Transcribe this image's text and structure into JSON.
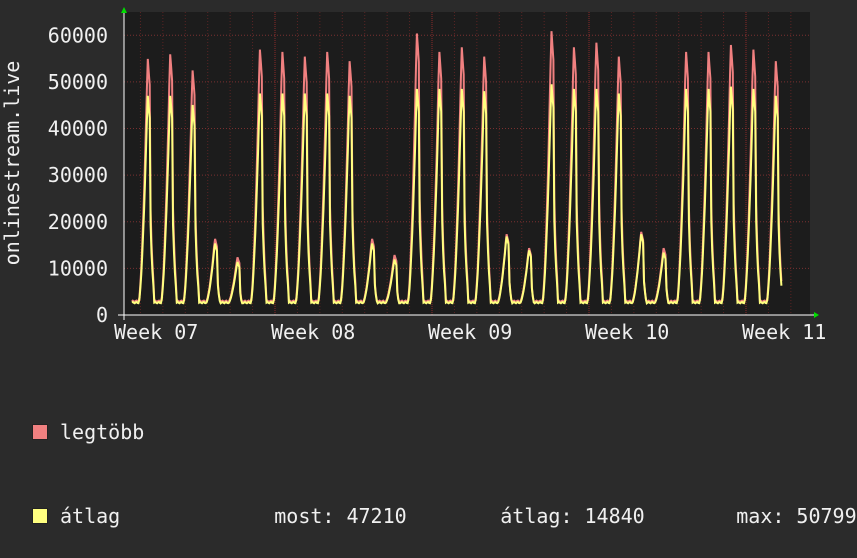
{
  "chart_data": {
    "type": "area",
    "ylabel": "onlinestream.live",
    "ylim": [
      0,
      65000
    ],
    "yticks": [
      0,
      10000,
      20000,
      30000,
      40000,
      50000,
      60000
    ],
    "grid": true,
    "x_tick_labels": [
      "Week 07",
      "Week 08",
      "Week 09",
      "Week 10",
      "Week 11"
    ],
    "series": [
      {
        "name": "legtöbb",
        "color": "#f08080",
        "daily_peaks": [
          55500,
          56500,
          53000,
          16500,
          12500,
          57500,
          57000,
          56000,
          57000,
          55000,
          16500,
          13000,
          61000,
          57000,
          58000,
          56000,
          17500,
          14500,
          61500,
          58000,
          59000,
          56000,
          18000,
          14500,
          57000,
          57000,
          58500,
          57500,
          55000
        ]
      },
      {
        "name": "átlag",
        "color": "#ffff80",
        "daily_peaks": [
          47500,
          47500,
          45500,
          15500,
          11500,
          48000,
          48000,
          48000,
          48000,
          47500,
          15500,
          12000,
          49000,
          49000,
          49000,
          48500,
          17000,
          14000,
          50000,
          49000,
          49000,
          48000,
          17500,
          13500,
          49000,
          49000,
          49500,
          49000,
          47500
        ],
        "min": 2500
      }
    ]
  },
  "legend": {
    "max_label": "legtöbb",
    "avg_label": "átlag",
    "stats": [
      {
        "label": "most:",
        "value": "47210"
      },
      {
        "label": "átlag:",
        "value": "14840"
      },
      {
        "label": "max:",
        "value": "50799"
      }
    ]
  }
}
